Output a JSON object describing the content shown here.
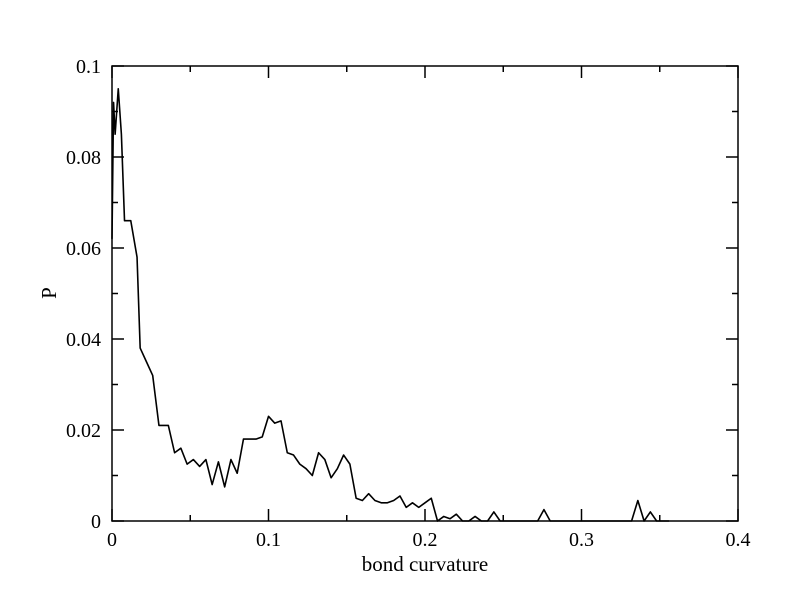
{
  "chart_data": {
    "type": "line",
    "title": "",
    "xlabel": "bond curvature",
    "ylabel": "P",
    "xlim": [
      0,
      0.4
    ],
    "ylim": [
      0,
      0.1
    ],
    "x_ticks": [
      0,
      0.1,
      0.2,
      0.3,
      0.4
    ],
    "x_tick_labels": [
      "0",
      "0.1",
      "0.2",
      "0.3",
      "0.4"
    ],
    "y_ticks": [
      0,
      0.02,
      0.04,
      0.06,
      0.08,
      0.1
    ],
    "y_tick_labels": [
      "0",
      "0.02",
      "0.04",
      "0.06",
      "0.08",
      "0.1"
    ],
    "grid": false,
    "legend": "none",
    "line_color": "#000000",
    "series": [
      {
        "x": [
          0.0,
          0.001,
          0.002,
          0.004,
          0.006,
          0.008,
          0.012,
          0.016,
          0.018,
          0.022,
          0.026,
          0.03,
          0.032,
          0.036,
          0.04,
          0.044,
          0.048,
          0.052,
          0.056,
          0.06,
          0.064,
          0.068,
          0.072,
          0.076,
          0.08,
          0.084,
          0.088,
          0.092,
          0.096,
          0.1,
          0.104,
          0.108,
          0.112,
          0.116,
          0.12,
          0.124,
          0.128,
          0.132,
          0.136,
          0.14,
          0.144,
          0.148,
          0.152,
          0.156,
          0.16,
          0.164,
          0.168,
          0.172,
          0.176,
          0.18,
          0.184,
          0.188,
          0.192,
          0.196,
          0.2,
          0.204,
          0.208,
          0.212,
          0.216,
          0.22,
          0.224,
          0.228,
          0.232,
          0.236,
          0.24,
          0.244,
          0.248,
          0.252,
          0.256,
          0.26,
          0.264,
          0.268,
          0.272,
          0.276,
          0.28,
          0.284,
          0.288,
          0.292,
          0.296,
          0.3,
          0.304,
          0.308,
          0.312,
          0.316,
          0.32,
          0.324,
          0.328,
          0.332,
          0.336,
          0.34,
          0.344,
          0.348,
          0.352,
          0.356
        ],
        "y": [
          0.062,
          0.092,
          0.085,
          0.095,
          0.085,
          0.066,
          0.066,
          0.058,
          0.038,
          0.035,
          0.032,
          0.021,
          0.021,
          0.021,
          0.015,
          0.016,
          0.0125,
          0.0135,
          0.012,
          0.0135,
          0.008,
          0.013,
          0.0075,
          0.0135,
          0.0105,
          0.018,
          0.018,
          0.018,
          0.0185,
          0.023,
          0.0215,
          0.022,
          0.015,
          0.0145,
          0.0125,
          0.0115,
          0.01,
          0.015,
          0.0135,
          0.0095,
          0.0115,
          0.0145,
          0.0125,
          0.005,
          0.0045,
          0.006,
          0.0045,
          0.004,
          0.004,
          0.0045,
          0.0055,
          0.003,
          0.004,
          0.003,
          0.004,
          0.005,
          0.0,
          0.001,
          0.0005,
          0.0015,
          0.0,
          0.0,
          0.001,
          0.0,
          0.0,
          0.002,
          0.0,
          0.0,
          0.0,
          0.0,
          0.0,
          0.0,
          0.0,
          0.0025,
          0.0,
          0.0,
          0.0,
          0.0,
          0.0,
          0.0,
          0.0,
          0.0,
          0.0,
          0.0,
          0.0,
          0.0,
          0.0,
          0.0,
          0.0045,
          0.0,
          0.002,
          0.0,
          0.0,
          0.0
        ]
      }
    ]
  }
}
